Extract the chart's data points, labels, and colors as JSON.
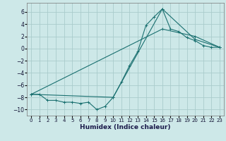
{
  "xlabel": "Humidex (Indice chaleur)",
  "background_color": "#cde8e8",
  "grid_color": "#aacccc",
  "line_color": "#1a7070",
  "xlim": [
    -0.5,
    23.5
  ],
  "ylim": [
    -11,
    7.5
  ],
  "yticks": [
    -10,
    -8,
    -6,
    -4,
    -2,
    0,
    2,
    4,
    6
  ],
  "xticks": [
    0,
    1,
    2,
    3,
    4,
    5,
    6,
    7,
    8,
    9,
    10,
    11,
    12,
    13,
    14,
    15,
    16,
    17,
    18,
    19,
    20,
    21,
    22,
    23
  ],
  "series1_x": [
    0,
    1,
    2,
    3,
    4,
    5,
    6,
    7,
    8,
    9,
    10,
    11,
    12,
    13,
    14,
    15,
    16,
    17,
    18,
    19,
    20,
    21,
    22,
    23
  ],
  "series1_y": [
    -7.5,
    -7.5,
    -8.5,
    -8.5,
    -8.8,
    -8.8,
    -9.0,
    -8.8,
    -10.0,
    -9.5,
    -8.0,
    -5.5,
    -2.8,
    -0.5,
    3.8,
    5.2,
    6.5,
    3.2,
    2.8,
    1.8,
    1.3,
    0.5,
    0.2,
    0.2
  ],
  "series2_x": [
    0,
    10,
    16,
    20,
    23
  ],
  "series2_y": [
    -7.5,
    -8.0,
    6.5,
    1.5,
    0.2
  ],
  "series3_x": [
    0,
    16,
    20,
    23
  ],
  "series3_y": [
    -7.5,
    3.2,
    2.0,
    0.2
  ]
}
